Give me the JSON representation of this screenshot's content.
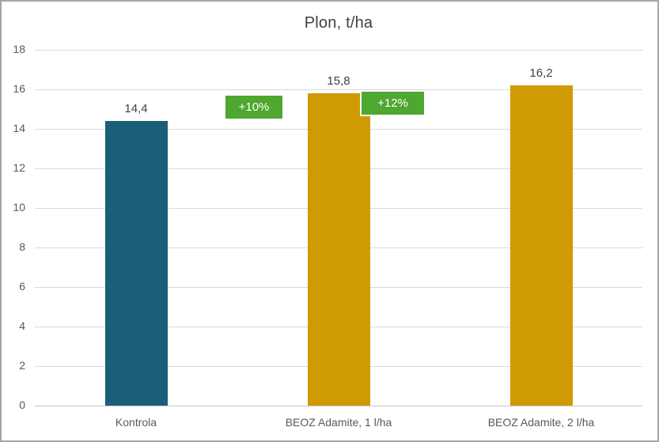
{
  "chart_data": {
    "type": "bar",
    "title": "Plon, t/ha",
    "categories": [
      "Kontrola",
      "BEOZ Adamite, 1 l/ha",
      "BEOZ Adamite, 2 l/ha"
    ],
    "values": [
      14.4,
      15.8,
      16.2
    ],
    "value_labels": [
      "14,4",
      "15,8",
      "16,2"
    ],
    "bar_colors": [
      "#1A5E78",
      "#CF9A02",
      "#CF9A02"
    ],
    "annotations": [
      {
        "text": "+10%",
        "fill": "#4EA72E",
        "text_color": "#FFFFFF"
      },
      {
        "text": "+12%",
        "fill": "#4EA72E",
        "text_color": "#FFFFFF"
      }
    ],
    "xlabel": "",
    "ylabel": "",
    "ylim": [
      0,
      18
    ],
    "yticks": [
      0,
      2,
      4,
      6,
      8,
      10,
      12,
      14,
      16,
      18
    ],
    "grid": true,
    "legend": false,
    "colors": {
      "title_text": "#404040",
      "axis_text": "#595959",
      "gridline": "#D9D9D9",
      "frame_border": "#A6A6A6",
      "background": "#FFFFFF"
    }
  }
}
